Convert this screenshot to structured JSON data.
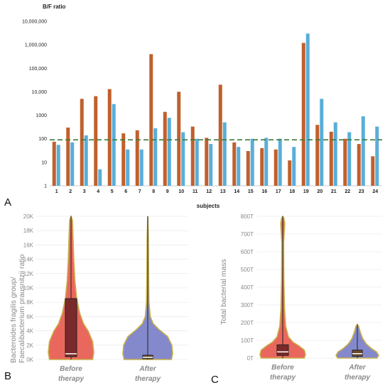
{
  "chart_data": [
    {
      "panel": "A",
      "type": "bar",
      "ylabel": "B/F ratio",
      "xlabel": "subjects",
      "yscale": "log",
      "ylim": [
        1,
        10000000
      ],
      "y_ticks": [
        "1",
        "10",
        "100",
        "1000",
        "10,000",
        "100,000",
        "1,000,000",
        "10,000,000"
      ],
      "categories": [
        "1",
        "2",
        "3",
        "4",
        "5",
        "6",
        "7",
        "8",
        "9",
        "10",
        "11",
        "12",
        "13",
        "14",
        "15",
        "16",
        "17",
        "18",
        "19",
        "20",
        "21",
        "22",
        "23",
        "24"
      ],
      "reference_line": 90,
      "series": [
        {
          "color": "#c0602d",
          "values": [
            75,
            300,
            5000,
            6500,
            13000,
            170,
            230,
            400000,
            1400,
            10000,
            330,
            110,
            20000,
            70,
            30,
            40,
            35,
            12,
            1200000,
            390,
            200,
            100,
            60,
            18
          ]
        },
        {
          "color": "#5aaed8",
          "values": [
            55,
            70,
            140,
            5,
            3000,
            35,
            35,
            280,
            780,
            190,
            100,
            60,
            500,
            45,
            100,
            110,
            100,
            45,
            3000000,
            5000,
            500,
            190,
            900,
            330
          ]
        }
      ],
      "colors": {
        "bar1": "#c0602d",
        "bar2": "#5aaed8",
        "ref": "#3f7a3a"
      }
    },
    {
      "panel": "B",
      "type": "violin",
      "ylabel": "Bacteroides fragilis group/ Faecalibacterium prausnitzii ratio",
      "y_ticks": [
        "0K",
        "2K",
        "4K",
        "6K",
        "8K",
        "10K",
        "12K",
        "14K",
        "16K",
        "18K",
        "20K"
      ],
      "ylim": [
        0,
        20000
      ],
      "categories": [
        {
          "label": "Before therapy",
          "lines": [
            "Before",
            "therapy"
          ],
          "color": "#e85a4f",
          "q1": 400,
          "median": 800,
          "q3": 8500,
          "max": 20000
        },
        {
          "label": "After therapy",
          "lines": [
            "After",
            "therapy"
          ],
          "color": "#7a7fc8",
          "q1": 100,
          "median": 300,
          "q3": 600,
          "max": 20000
        }
      ]
    },
    {
      "panel": "C",
      "type": "violin",
      "ylabel": "Total bacterial mass",
      "y_ticks": [
        "0T",
        "100T",
        "200T",
        "300T",
        "400T",
        "500T",
        "600T",
        "700T",
        "800T"
      ],
      "ylim": [
        0,
        800
      ],
      "categories": [
        {
          "label": "Before therapy",
          "lines": [
            "Before",
            "therapy"
          ],
          "color": "#e85a4f",
          "q1": 15,
          "median": 35,
          "q3": 75,
          "max": 800
        },
        {
          "label": "After therapy",
          "lines": [
            "After",
            "therapy"
          ],
          "color": "#7a7fc8",
          "q1": 10,
          "median": 25,
          "q3": 45,
          "max": 190
        }
      ]
    }
  ],
  "panel_letters": [
    "A",
    "B",
    "C"
  ]
}
